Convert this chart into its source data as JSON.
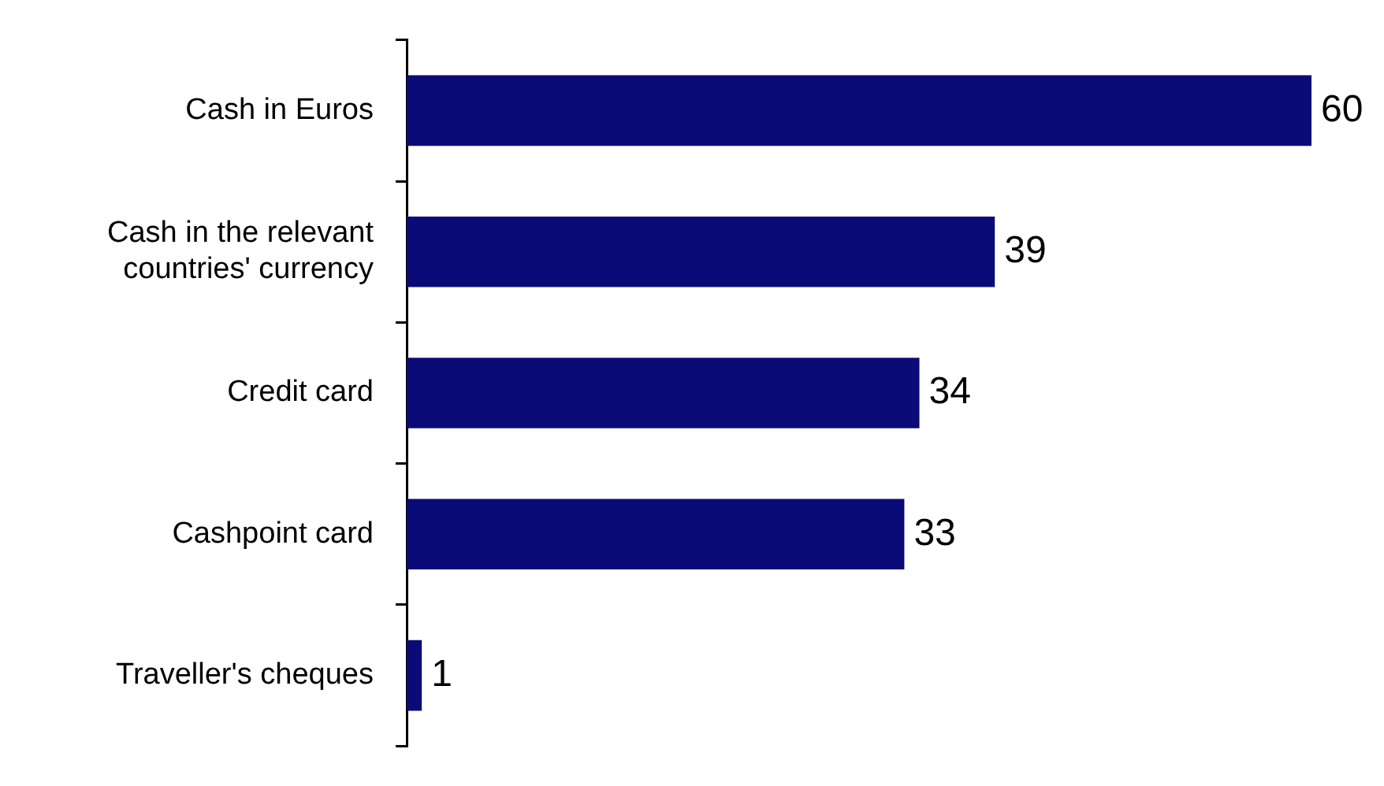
{
  "chart_data": {
    "type": "bar",
    "orientation": "horizontal",
    "categories": [
      "Cash in Euros",
      "Cash in the relevant\ncountries' currency",
      "Credit card",
      "Cashpoint card",
      "Traveller's cheques"
    ],
    "values": [
      60,
      39,
      34,
      33,
      1
    ],
    "color": "#0b0b78",
    "data_labels": true,
    "tick_labels": "y",
    "grid": false,
    "legend": false
  }
}
